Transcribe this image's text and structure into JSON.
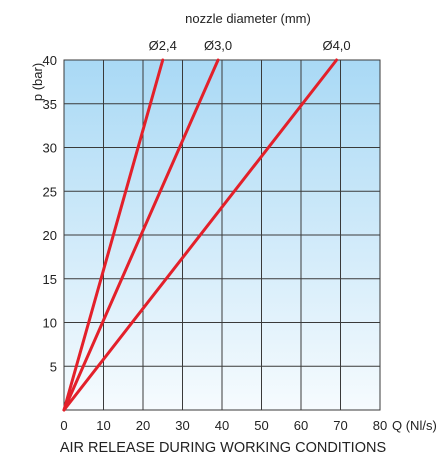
{
  "chart_data": {
    "type": "line",
    "title": "AIR RELEASE DURING WORKING CONDITIONS",
    "top_axis_label": "nozzle diameter (mm)",
    "xlabel": "Q (Nl/s)",
    "ylabel": "p (bar)",
    "xlim": [
      0,
      80
    ],
    "ylim": [
      0,
      40
    ],
    "x_ticks": [
      "0",
      "10",
      "20",
      "30",
      "40",
      "50",
      "60",
      "70",
      "80"
    ],
    "y_ticks": [
      "5",
      "10",
      "15",
      "20",
      "25",
      "30",
      "35",
      "40"
    ],
    "grid": true,
    "background": "gradient light blue (top) to white (bottom)",
    "series": [
      {
        "name": "Ø2,4",
        "x": [
          0,
          25
        ],
        "y": [
          0,
          40
        ]
      },
      {
        "name": "Ø3,0",
        "x": [
          0,
          39
        ],
        "y": [
          0,
          40
        ]
      },
      {
        "name": "Ø4,0",
        "x": [
          0,
          69
        ],
        "y": [
          0,
          40
        ]
      }
    ],
    "colors": {
      "series": "#e3202a",
      "grid": "#3a3a3a",
      "gradient_top": "#a9d9f5",
      "gradient_bottom": "#f6fbfe"
    }
  }
}
